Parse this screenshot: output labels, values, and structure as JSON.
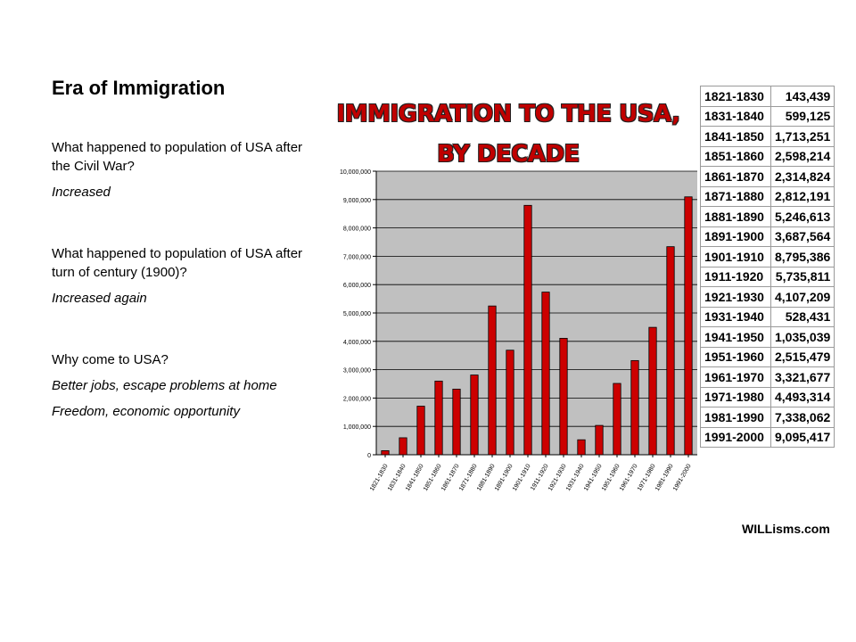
{
  "slide": {
    "title": "Era of Immigration",
    "items": [
      {
        "question": "What happened to population of USA after the Civil War?",
        "answer": "Increased"
      },
      {
        "question": "What happened to population of USA after turn of century (1900)?",
        "answer": "Increased again"
      },
      {
        "question": "Why come to USA?",
        "answer": "Better jobs, escape problems at home",
        "answer2": "Freedom, economic opportunity"
      }
    ]
  },
  "table": {
    "rows": [
      [
        "1821-1830",
        "143,439"
      ],
      [
        "1831-1840",
        "599,125"
      ],
      [
        "1841-1850",
        "1,713,251"
      ],
      [
        "1851-1860",
        "2,598,214"
      ],
      [
        "1861-1870",
        "2,314,824"
      ],
      [
        "1871-1880",
        "2,812,191"
      ],
      [
        "1881-1890",
        "5,246,613"
      ],
      [
        "1891-1900",
        "3,687,564"
      ],
      [
        "1901-1910",
        "8,795,386"
      ],
      [
        "1911-1920",
        "5,735,811"
      ],
      [
        "1921-1930",
        "4,107,209"
      ],
      [
        "1931-1940",
        "528,431"
      ],
      [
        "1941-1950",
        "1,035,039"
      ],
      [
        "1951-1960",
        "2,515,479"
      ],
      [
        "1961-1970",
        "3,321,677"
      ],
      [
        "1971-1980",
        "4,493,314"
      ],
      [
        "1981-1990",
        "7,338,062"
      ],
      [
        "1991-2000",
        "9,095,417"
      ]
    ],
    "credit": "WILLisms.com"
  },
  "chart_data": {
    "type": "bar",
    "title": "IMMIGRATION TO THE USA, BY DECADE",
    "categories": [
      "1821-1830",
      "1831-1840",
      "1841-1850",
      "1851-1860",
      "1861-1870",
      "1871-1880",
      "1881-1890",
      "1891-1900",
      "1901-1910",
      "1911-1920",
      "1921-1930",
      "1931-1940",
      "1941-1950",
      "1951-1960",
      "1961-1970",
      "1971-1980",
      "1981-1990",
      "1991-2000"
    ],
    "values": [
      143439,
      599125,
      1713251,
      2598214,
      2314824,
      2812191,
      5246613,
      3687564,
      8795386,
      5735811,
      4107209,
      528431,
      1035039,
      2515479,
      3321677,
      4493314,
      7338062,
      9095417
    ],
    "ylim": [
      0,
      10000000
    ],
    "yticks": [
      0,
      1000000,
      2000000,
      3000000,
      4000000,
      5000000,
      6000000,
      7000000,
      8000000,
      9000000,
      10000000
    ],
    "ytick_labels": [
      "0",
      "1,000,000",
      "2,000,000",
      "3,000,000",
      "4,000,000",
      "5,000,000",
      "6,000,000",
      "7,000,000",
      "8,000,000",
      "9,000,000",
      "10,000,000"
    ],
    "xlabel": "",
    "ylabel": "",
    "grid": true,
    "legend": false,
    "colors": {
      "bar": "#cc0000",
      "plot_background": "#c0c0c0",
      "title": "#c00000"
    }
  }
}
